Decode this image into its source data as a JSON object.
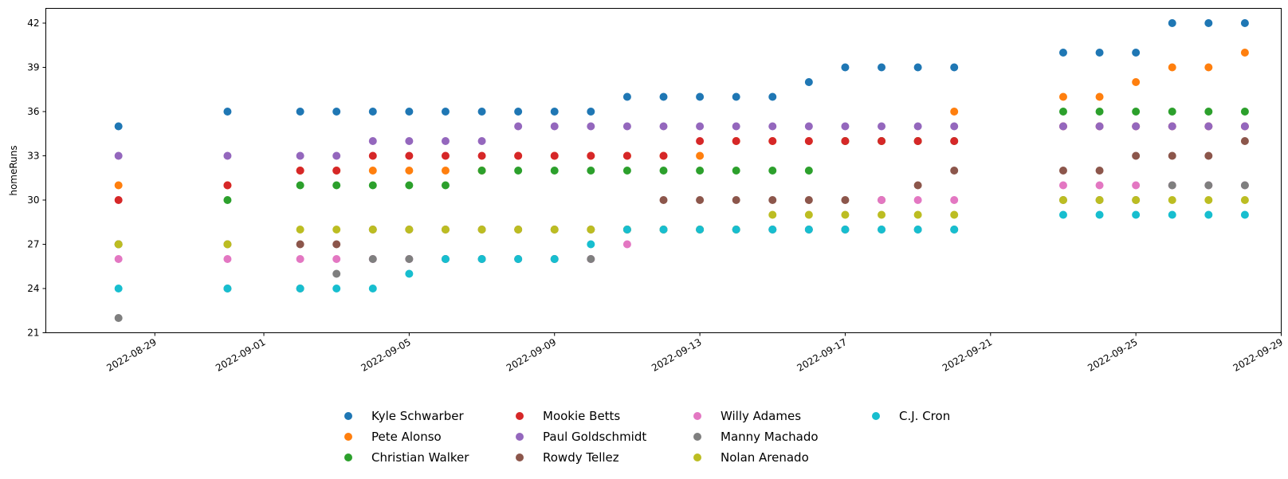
{
  "chart_data": {
    "type": "scatter",
    "title": "",
    "xlabel": "",
    "ylabel": "homeRuns",
    "ylim": [
      21,
      43
    ],
    "xlim": [
      "2022-08-26",
      "2022-09-29"
    ],
    "yticks": [
      21,
      24,
      27,
      30,
      33,
      36,
      39,
      42
    ],
    "xticks": [
      "2022-08-29",
      "2022-09-01",
      "2022-09-05",
      "2022-09-09",
      "2022-09-13",
      "2022-09-17",
      "2022-09-21",
      "2022-09-25",
      "2022-09-29"
    ],
    "grid": false,
    "legend_position": "bottom-center",
    "x": [
      "2022-08-28",
      "2022-08-31",
      "2022-09-02",
      "2022-09-03",
      "2022-09-04",
      "2022-09-05",
      "2022-09-06",
      "2022-09-07",
      "2022-09-08",
      "2022-09-09",
      "2022-09-10",
      "2022-09-11",
      "2022-09-12",
      "2022-09-13",
      "2022-09-14",
      "2022-09-15",
      "2022-09-16",
      "2022-09-17",
      "2022-09-18",
      "2022-09-19",
      "2022-09-20",
      "2022-09-23",
      "2022-09-24",
      "2022-09-25",
      "2022-09-26",
      "2022-09-27",
      "2022-09-28"
    ],
    "series": [
      {
        "name": "Kyle Schwarber",
        "color": "#1f77b4",
        "values": [
          35,
          36,
          36,
          36,
          36,
          36,
          36,
          36,
          36,
          36,
          36,
          37,
          37,
          37,
          37,
          37,
          38,
          39,
          39,
          39,
          39,
          40,
          40,
          40,
          42,
          42,
          42
        ]
      },
      {
        "name": "Pete Alonso",
        "color": "#ff7f0e",
        "values": [
          31,
          31,
          32,
          32,
          32,
          32,
          32,
          32,
          33,
          33,
          33,
          33,
          33,
          33,
          34,
          34,
          34,
          34,
          34,
          34,
          36,
          37,
          37,
          38,
          39,
          39,
          40
        ]
      },
      {
        "name": "Christian Walker",
        "color": "#2ca02c",
        "values": [
          27,
          30,
          31,
          31,
          31,
          31,
          31,
          32,
          32,
          32,
          32,
          32,
          32,
          32,
          32,
          32,
          32,
          34,
          34,
          34,
          34,
          36,
          36,
          36,
          36,
          36,
          36
        ]
      },
      {
        "name": "Mookie Betts",
        "color": "#d62728",
        "values": [
          30,
          31,
          32,
          32,
          33,
          33,
          33,
          33,
          33,
          33,
          33,
          33,
          33,
          34,
          34,
          34,
          34,
          34,
          34,
          34,
          34,
          35,
          35,
          35,
          35,
          35,
          35
        ]
      },
      {
        "name": "Paul Goldschmidt",
        "color": "#9467bd",
        "values": [
          33,
          33,
          33,
          33,
          34,
          34,
          34,
          34,
          35,
          35,
          35,
          35,
          35,
          35,
          35,
          35,
          35,
          35,
          35,
          35,
          35,
          35,
          35,
          35,
          35,
          35,
          35
        ]
      },
      {
        "name": "Rowdy Tellez",
        "color": "#8c564b",
        "values": [
          27,
          27,
          27,
          27,
          28,
          28,
          28,
          28,
          28,
          28,
          28,
          28,
          30,
          30,
          30,
          30,
          30,
          30,
          30,
          31,
          32,
          32,
          32,
          33,
          33,
          33,
          34
        ]
      },
      {
        "name": "Willy Adames",
        "color": "#e377c2",
        "values": [
          26,
          26,
          26,
          26,
          26,
          26,
          26,
          26,
          26,
          26,
          26,
          27,
          28,
          28,
          28,
          28,
          28,
          28,
          30,
          30,
          30,
          31,
          31,
          31,
          31,
          31,
          31
        ]
      },
      {
        "name": "Manny Machado",
        "color": "#7f7f7f",
        "values": [
          22,
          24,
          24,
          25,
          26,
          26,
          26,
          26,
          26,
          26,
          26,
          28,
          28,
          28,
          28,
          28,
          28,
          28,
          28,
          28,
          28,
          30,
          30,
          30,
          31,
          31,
          31
        ]
      },
      {
        "name": "Nolan Arenado",
        "color": "#bcbd22",
        "values": [
          27,
          27,
          28,
          28,
          28,
          28,
          28,
          28,
          28,
          28,
          28,
          28,
          28,
          28,
          28,
          29,
          29,
          29,
          29,
          29,
          29,
          30,
          30,
          30,
          30,
          30,
          30
        ]
      },
      {
        "name": "C.J. Cron",
        "color": "#17becf",
        "values": [
          24,
          24,
          24,
          24,
          24,
          25,
          26,
          26,
          26,
          26,
          27,
          28,
          28,
          28,
          28,
          28,
          28,
          28,
          28,
          28,
          28,
          29,
          29,
          29,
          29,
          29,
          29
        ]
      }
    ]
  }
}
